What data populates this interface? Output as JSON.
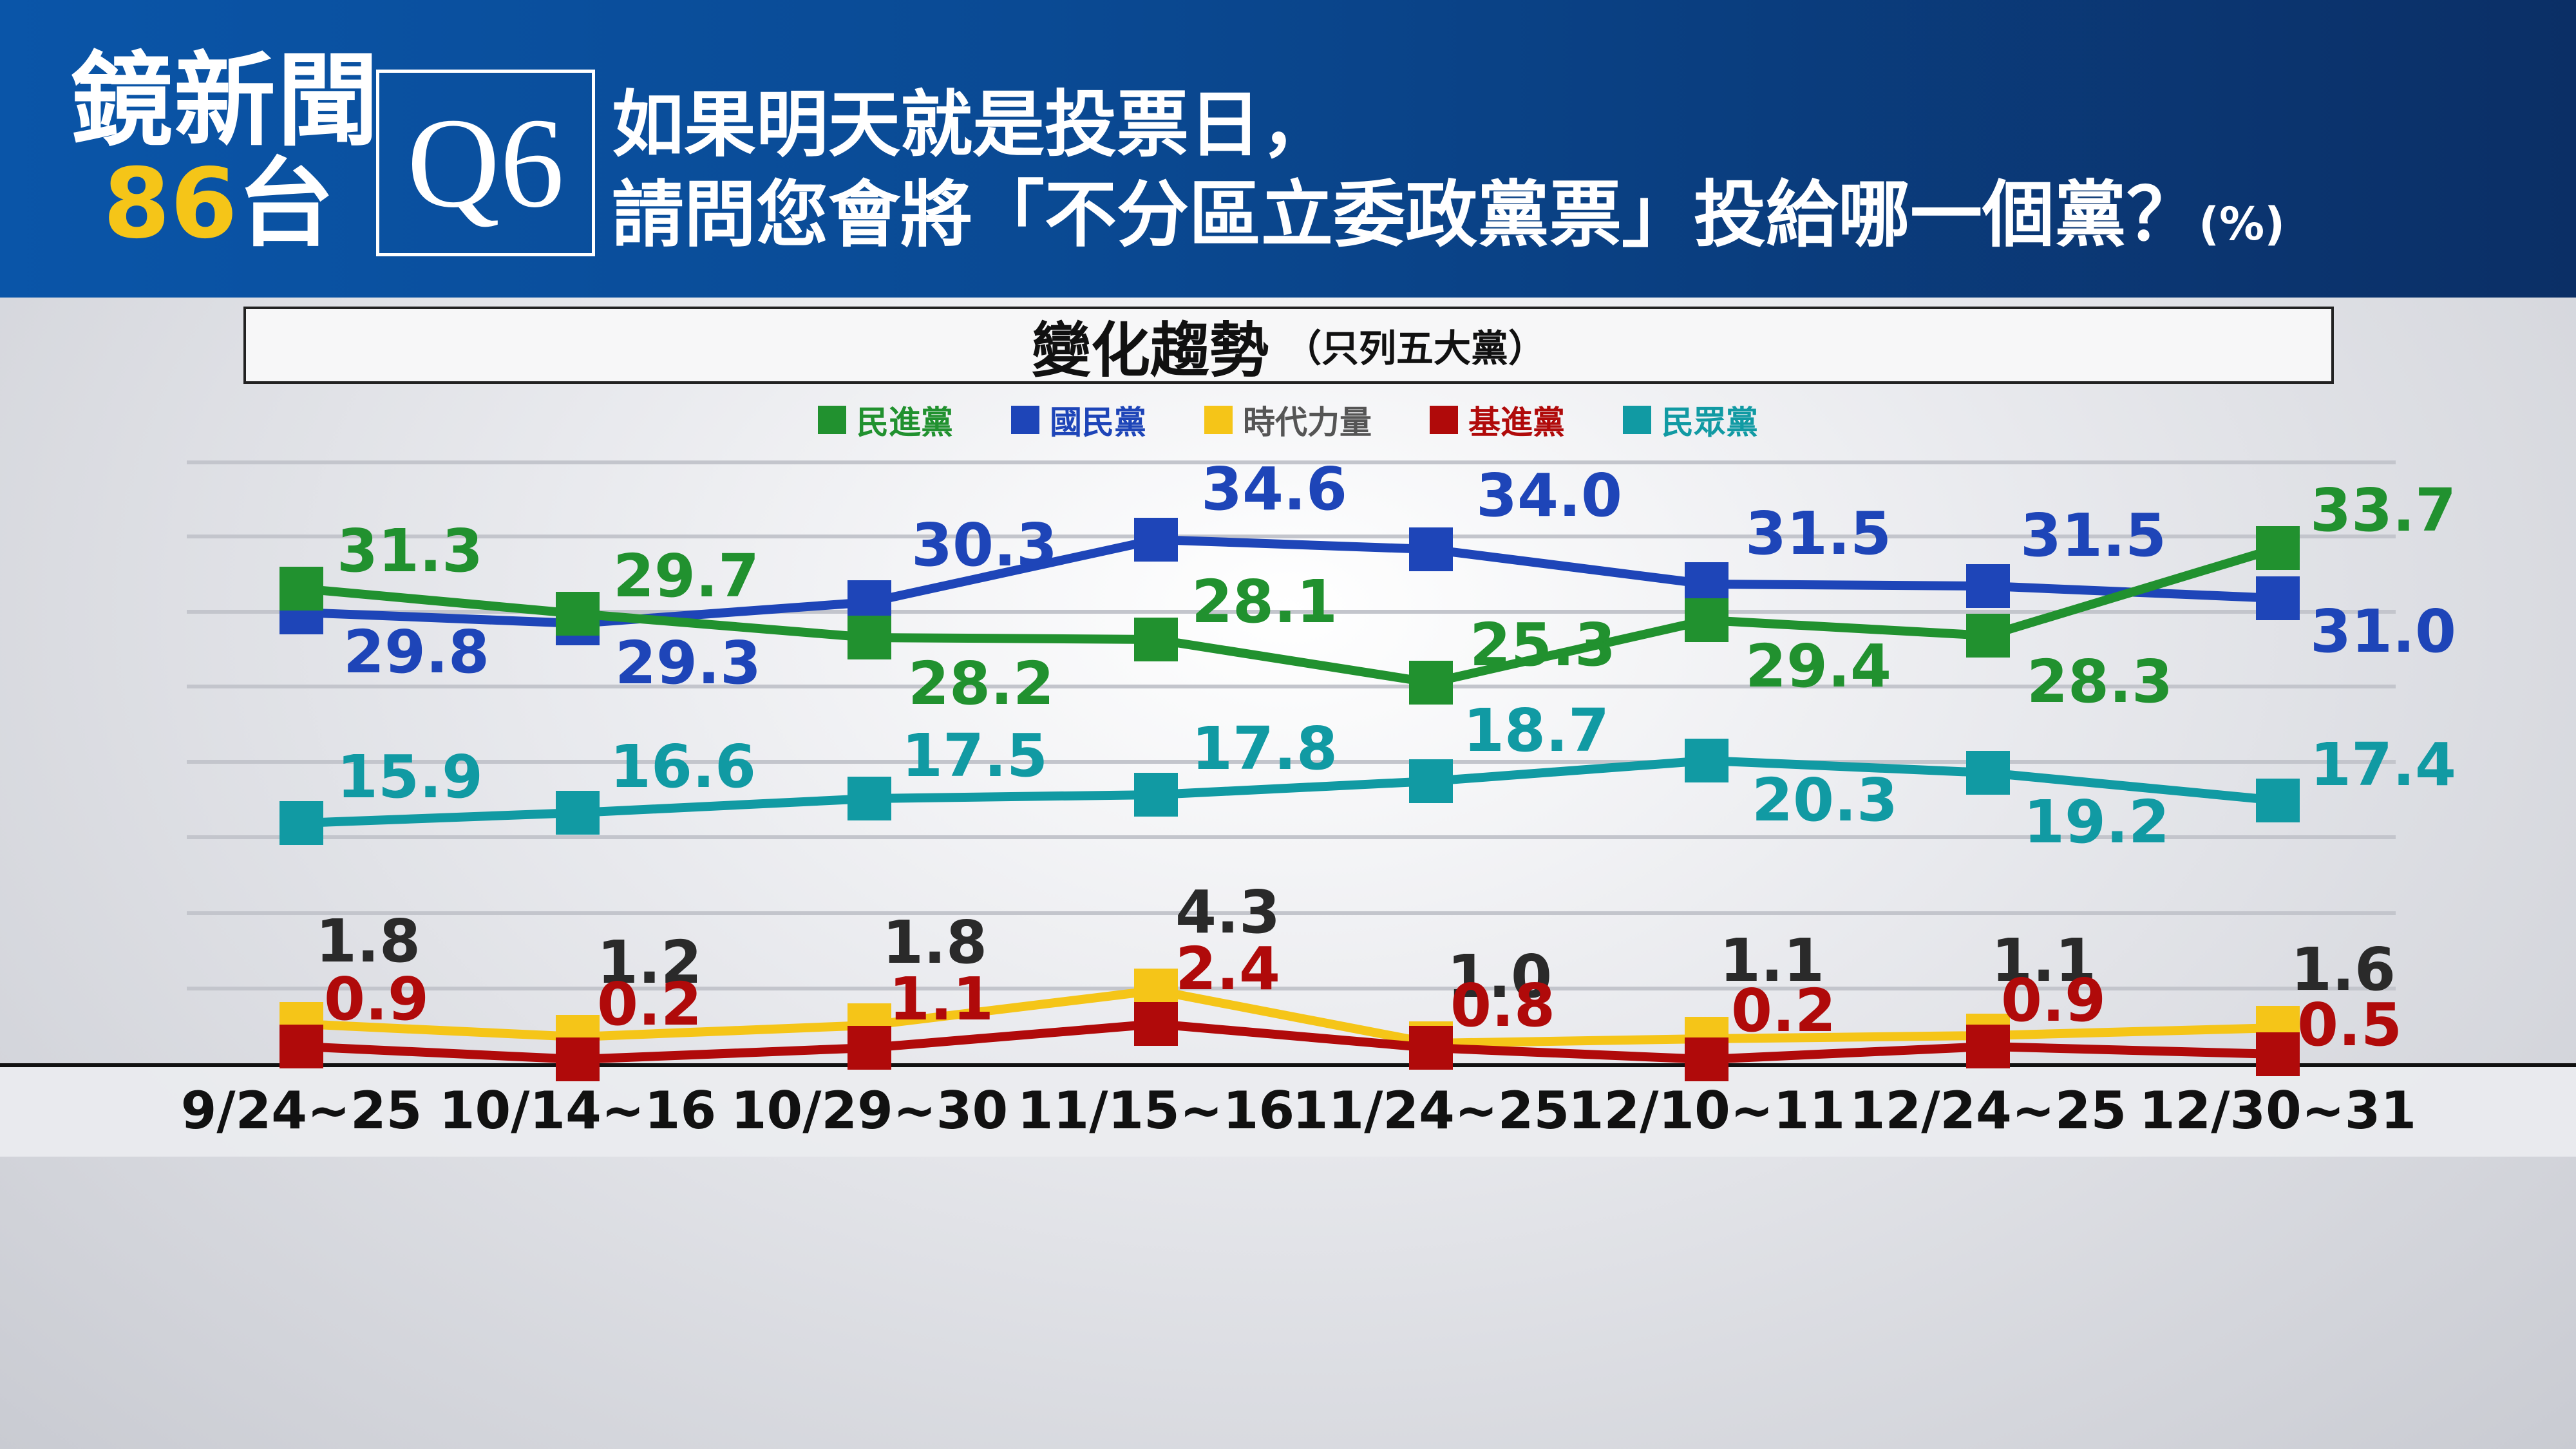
{
  "header": {
    "logo_line1": "鏡新聞",
    "logo_num": "86",
    "logo_tai": "台",
    "q_label": "Q6",
    "question_line1": "如果明天就是投票日，",
    "question_line2": "請問您會將「不分區立委政黨票」投給哪一個黨？",
    "question_unit": "(%)"
  },
  "chart_title": {
    "main": "變化趨勢",
    "sub": "（只列五大黨）"
  },
  "colors": {
    "dpp": "#21912f",
    "kmt": "#1e45b8",
    "npp": "#f5c518",
    "tsp": "#b00a0a",
    "tpp": "#119aa3",
    "other": "#2a2a2a"
  },
  "chart_data": {
    "type": "line",
    "categories": [
      "9/24~25",
      "10/14~16",
      "10/29~30",
      "11/15~16",
      "11/24~25",
      "12/10~11",
      "12/24~25",
      "12/30~31"
    ],
    "unit": "%",
    "series": [
      {
        "name": "民進黨",
        "color": "#21912f",
        "values": [
          31.3,
          29.7,
          28.2,
          28.1,
          25.3,
          29.4,
          28.3,
          33.7
        ]
      },
      {
        "name": "國民黨",
        "color": "#1e45b8",
        "values": [
          29.8,
          29.3,
          30.3,
          34.6,
          34.0,
          31.5,
          31.5,
          31.0
        ]
      },
      {
        "name": "時代力量",
        "color": "#f5c518",
        "values": [
          1.8,
          1.2,
          1.8,
          4.3,
          1.0,
          1.1,
          1.1,
          1.6
        ]
      },
      {
        "name": "基進黨",
        "color": "#b00a0a",
        "values": [
          0.9,
          0.2,
          1.1,
          2.4,
          0.8,
          0.2,
          0.9,
          0.5
        ]
      },
      {
        "name": "民眾黨",
        "color": "#119aa3",
        "values": [
          15.9,
          16.6,
          17.5,
          17.8,
          18.7,
          20.3,
          19.2,
          17.4
        ]
      }
    ],
    "legend": [
      "民進黨",
      "國民黨",
      "時代力量",
      "基進黨",
      "民眾黨"
    ],
    "grid": true,
    "legend_position": "top-center"
  }
}
